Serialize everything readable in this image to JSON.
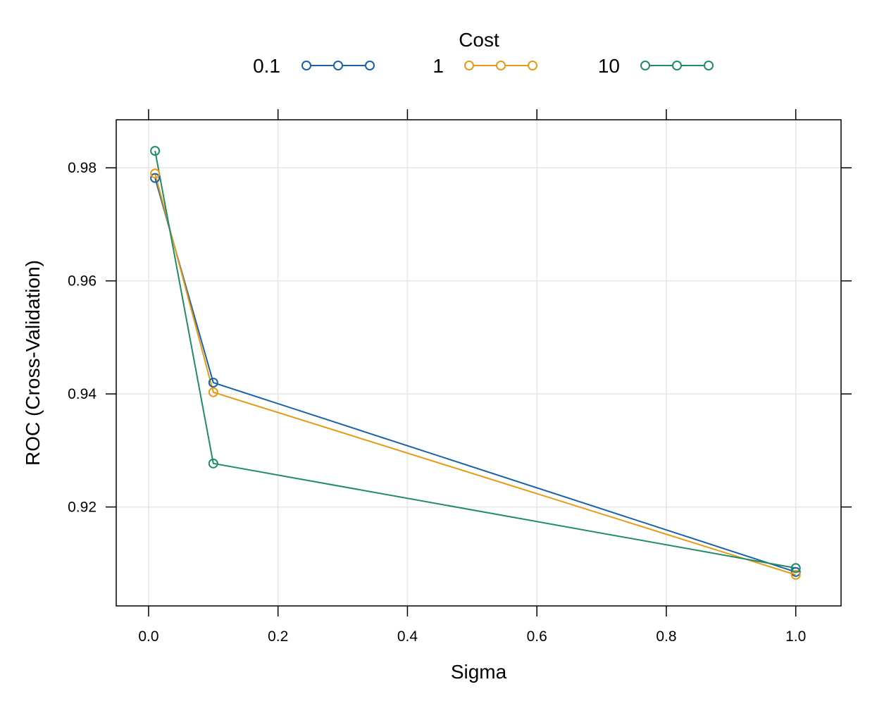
{
  "chart_data": {
    "type": "line",
    "xlabel": "Sigma",
    "ylabel": "ROC (Cross-Validation)",
    "xlim": [
      -0.05,
      1.07
    ],
    "ylim": [
      0.9025,
      0.9885
    ],
    "x_ticks": [
      0.0,
      0.2,
      0.4,
      0.6,
      0.8,
      1.0
    ],
    "x_tick_labels": [
      "0.0",
      "0.2",
      "0.4",
      "0.6",
      "0.8",
      "1.0"
    ],
    "y_ticks": [
      0.92,
      0.94,
      0.96,
      0.98
    ],
    "y_tick_labels": [
      "0.92",
      "0.94",
      "0.96",
      "0.98"
    ],
    "grid": true,
    "legend": {
      "title": "Cost",
      "position": "top"
    },
    "x": [
      0.01,
      0.1,
      1.0
    ],
    "series": [
      {
        "name": "0.1",
        "color": "#1a62a8",
        "values": [
          0.9782,
          0.942,
          0.9085
        ]
      },
      {
        "name": "1",
        "color": "#e69a16",
        "values": [
          0.979,
          0.9403,
          0.908
        ]
      },
      {
        "name": "10",
        "color": "#1f8c66",
        "values": [
          0.983,
          0.9277,
          0.9092
        ]
      }
    ]
  }
}
